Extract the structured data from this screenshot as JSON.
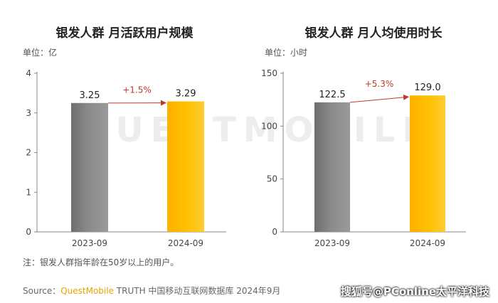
{
  "chart_data": [
    {
      "type": "bar",
      "title": "银发人群 月活跃用户规模",
      "unit_label": "单位：亿",
      "categories": [
        "2023-09",
        "2024-09"
      ],
      "values": [
        3.25,
        3.29
      ],
      "value_labels": [
        "3.25",
        "3.29"
      ],
      "bar_colors": [
        "#8a8a8a",
        "#ffc000"
      ],
      "growth_label": "+1.5%",
      "ylim": [
        0,
        4
      ],
      "yticks": [
        0,
        1,
        2,
        3,
        4
      ],
      "ytick_labels": [
        "0",
        "1",
        "2",
        "3",
        "4"
      ],
      "grid": false
    },
    {
      "type": "bar",
      "title": "银发人群 月人均使用时长",
      "unit_label": "单位：小时",
      "categories": [
        "2023-09",
        "2024-09"
      ],
      "values": [
        122.5,
        129.0
      ],
      "value_labels": [
        "122.5",
        "129.0"
      ],
      "bar_colors": [
        "#8a8a8a",
        "#ffc000"
      ],
      "growth_label": "+5.3%",
      "ylim": [
        0,
        150
      ],
      "yticks": [
        0,
        50,
        100,
        150
      ],
      "ytick_labels": [
        "0",
        "50",
        "100",
        "150"
      ],
      "grid": false
    }
  ],
  "footnote": "注：银发人群指年龄在50岁以上的用户。",
  "source": {
    "prefix": "Source：",
    "brand": "QuestMobile",
    "rest": " TRUTH 中国移动互联网数据库 2024年9月"
  },
  "watermark": "搜狐号@PConline太平洋科技",
  "background_mark": "QUESTMOBILE",
  "colors": {
    "axis": "#888888",
    "growth_arrow": "#c0392b",
    "growth_text": "#c0392b"
  }
}
